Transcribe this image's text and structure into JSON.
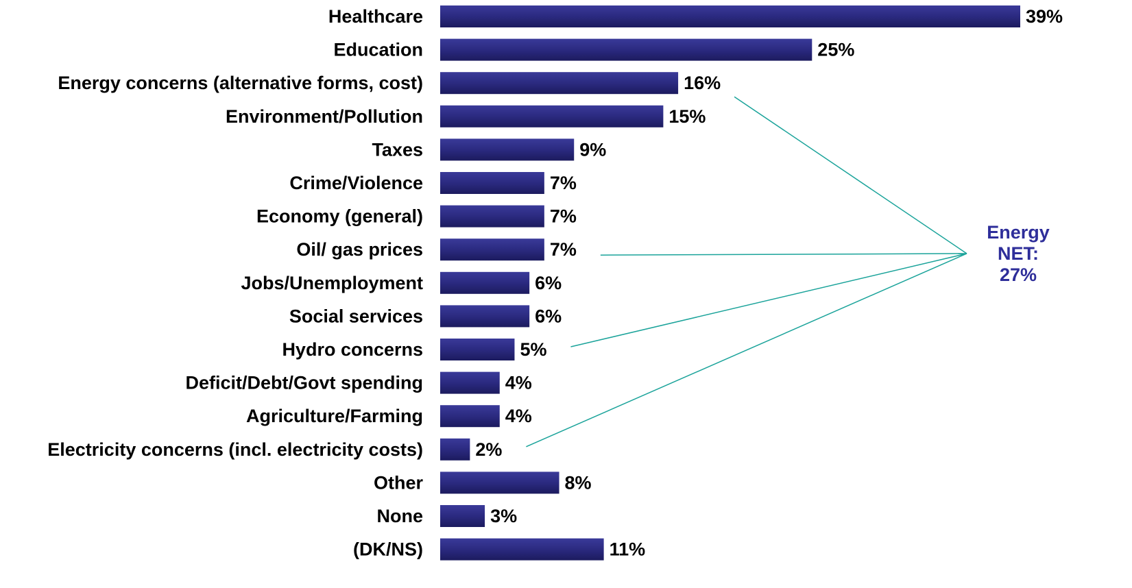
{
  "chart_data": {
    "type": "bar",
    "orientation": "horizontal",
    "categories": [
      "Healthcare",
      "Education",
      "Energy concerns (alternative forms, cost)",
      "Environment/Pollution",
      "Taxes",
      "Crime/Violence",
      "Economy (general)",
      "Oil/ gas prices",
      "Jobs/Unemployment",
      "Social services",
      "Hydro concerns",
      "Deficit/Debt/Govt spending",
      "Agriculture/Farming",
      "Electricity concerns (incl. electricity costs)",
      "Other",
      "None",
      "(DK/NS)"
    ],
    "values": [
      39,
      25,
      16,
      15,
      9,
      7,
      7,
      7,
      6,
      6,
      5,
      4,
      4,
      2,
      8,
      3,
      11
    ],
    "value_labels": [
      "39%",
      "25%",
      "16%",
      "15%",
      "9%",
      "7%",
      "7%",
      "7%",
      "6%",
      "6%",
      "5%",
      "4%",
      "4%",
      "2%",
      "8%",
      "3%",
      "11%"
    ],
    "xlim": [
      0,
      39
    ],
    "grid": false,
    "bar_color": "#2B2A80",
    "annotation": {
      "lines": [
        "Energy",
        "NET:",
        "27%"
      ],
      "color": "#2E2E9A",
      "connector_color": "#1AA39A",
      "links_to": [
        "Energy concerns (alternative forms, cost)",
        "Oil/ gas prices",
        "Hydro concerns",
        "Electricity concerns (incl. electricity costs)"
      ]
    }
  }
}
